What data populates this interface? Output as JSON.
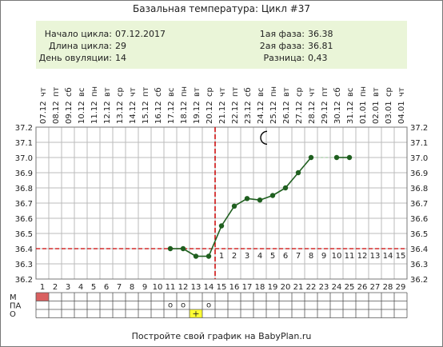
{
  "title": "Базальная температура: Цикл #37",
  "summary": {
    "left": [
      {
        "label": "Начало цикла:",
        "value": "07.12.2017"
      },
      {
        "label": "Длина цикла:",
        "value": "29"
      },
      {
        "label": "День овуляции:",
        "value": "14"
      }
    ],
    "right": [
      {
        "label": "1ая фаза:",
        "value": "36.38"
      },
      {
        "label": "2ая фаза:",
        "value": "36.81"
      },
      {
        "label": "Разница:",
        "value": "0,43"
      }
    ]
  },
  "footer": "Постройте свой график на BabyPlan.ru",
  "moon_icon": "crescent-moon-icon",
  "colors": {
    "line": "#1f5f1f",
    "marker": "#1f5f1f",
    "ovulation_line": "#cc0000",
    "coverline": "#cc0000",
    "summary_bg": "#eaf5d8",
    "m_cell": "#d96060",
    "o_cell": "#ffff33",
    "phase_number": "#c05050"
  },
  "chart_data": {
    "type": "line",
    "ylim": [
      36.2,
      37.2
    ],
    "yticks": [
      "37.2",
      "37.1",
      "37.0",
      "36.9",
      "36.8",
      "36.7",
      "36.6",
      "36.5",
      "36.4",
      "36.3",
      "36.2"
    ],
    "weekdays": [
      "чт",
      "пт",
      "сб",
      "вс",
      "пн",
      "вт",
      "ср",
      "чт",
      "пт",
      "сб",
      "вс",
      "пн",
      "вт",
      "ср",
      "чт",
      "пт",
      "сб",
      "вс",
      "пн",
      "вт",
      "ср",
      "чт",
      "пт",
      "сб",
      "вс",
      "пн",
      "вт",
      "ср",
      "чт"
    ],
    "dates": [
      "07.12",
      "08.12",
      "09.12",
      "10.12",
      "11.12",
      "12.12",
      "13.12",
      "14.12",
      "15.12",
      "16.12",
      "17.12",
      "18.12",
      "19.12",
      "20.12",
      "21.12",
      "22.12",
      "23.12",
      "24.12",
      "25.12",
      "26.12",
      "27.12",
      "28.12",
      "29.12",
      "30.12",
      "31.12",
      "01.01",
      "02.01",
      "03.01",
      "04.01"
    ],
    "days": [
      "1",
      "2",
      "3",
      "4",
      "5",
      "6",
      "7",
      "8",
      "9",
      "10",
      "11",
      "12",
      "13",
      "14",
      "15",
      "16",
      "17",
      "18",
      "19",
      "20",
      "21",
      "22",
      "23",
      "24",
      "25",
      "26",
      "27",
      "28",
      "29"
    ],
    "series": [
      {
        "x": [
          11,
          12,
          13,
          14,
          15,
          16,
          17,
          18,
          19,
          20,
          21,
          22,
          24,
          25
        ],
        "y": [
          36.4,
          36.4,
          36.35,
          36.35,
          36.55,
          36.68,
          36.73,
          36.72,
          36.75,
          36.8,
          36.9,
          37.0,
          37.0,
          37.0
        ]
      }
    ],
    "gaps": [
      [
        22,
        24
      ]
    ],
    "ovulation_day": 14,
    "coverline": 36.4,
    "phase_numbers": [
      "1",
      "2",
      "3",
      "4",
      "5",
      "6",
      "7",
      "8",
      "9",
      "10",
      "11",
      "12",
      "13",
      "14",
      "15"
    ],
    "phase_start_day": 15,
    "moon_day": 18,
    "moon_temp": 37.13,
    "grid": true
  },
  "marks": {
    "rows": [
      "М",
      "ПА",
      "О"
    ],
    "M": [
      1
    ],
    "PA": [
      11,
      12,
      14
    ],
    "PA_symbol": "o",
    "O": [
      13
    ],
    "O_symbol": "+"
  }
}
